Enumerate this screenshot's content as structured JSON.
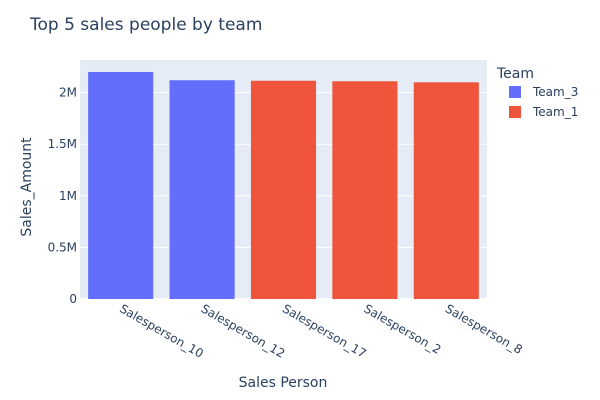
{
  "chart_data": {
    "type": "bar",
    "title": "Top 5 sales people by team",
    "xlabel": "Sales Person",
    "ylabel": "Sales_Amount",
    "categories": [
      "Salesperson_10",
      "Salesperson_12",
      "Salesperson_17",
      "Salesperson_2",
      "Salesperson_8"
    ],
    "values": [
      2200000,
      2120000,
      2115000,
      2110000,
      2100000
    ],
    "bar_series": [
      "Team_3",
      "Team_3",
      "Team_1",
      "Team_1",
      "Team_1"
    ],
    "series": [
      {
        "name": "Team_3",
        "color": "#636efa"
      },
      {
        "name": "Team_1",
        "color": "#ef553b"
      }
    ],
    "legend_title": "Team",
    "legend_position": "right",
    "yticks": [
      {
        "value": 0,
        "label": "0"
      },
      {
        "value": 500000,
        "label": "0.5M"
      },
      {
        "value": 1000000,
        "label": "1M"
      },
      {
        "value": 1500000,
        "label": "1.5M"
      },
      {
        "value": 2000000,
        "label": "2M"
      }
    ],
    "ylim": [
      0,
      2316000
    ],
    "grid": true,
    "plot_background": "#e5ecf6"
  }
}
